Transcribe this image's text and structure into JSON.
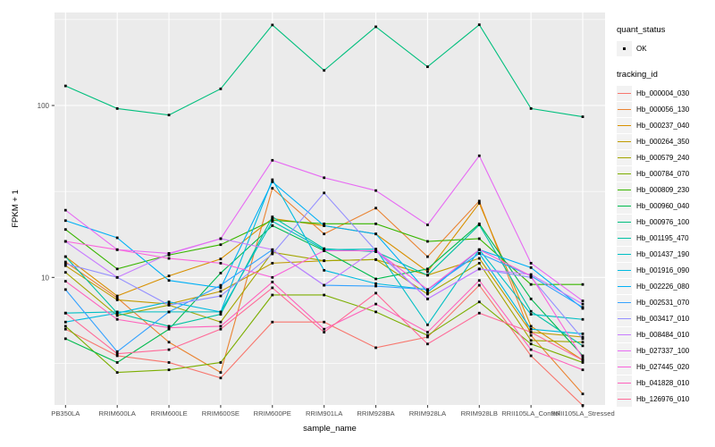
{
  "figure": {
    "background": "#ffffff",
    "panel_background": "#EBEBEB",
    "grid_color": "#FFFFFF",
    "axis_text_color": "#4D4D4D",
    "axis_title_color": "#000000",
    "marker_color": "#000000"
  },
  "legend": {
    "quant_status_title": "quant_status",
    "quant_status_items": [
      {
        "label": "OK",
        "marker": "black-point"
      }
    ],
    "tracking_id_title": "tracking_id"
  },
  "chart_data": {
    "type": "line",
    "title": "",
    "xlabel": "sample_name",
    "ylabel": "FPKM + 1",
    "y_scale": "log10",
    "y_major_ticks": [
      10,
      100
    ],
    "y_minor_gridlines": [
      3.1623,
      31.623,
      316.23
    ],
    "ylim": [
      1.75,
      350
    ],
    "grid": true,
    "legend_position": "right",
    "point_marker": "small black square (quant_status = OK)",
    "x_categories": [
      "PB350LA",
      "RRIM600LA",
      "RRIM600LE",
      "RRIM600SE",
      "RRIM600PE",
      "RRIM901LA",
      "RRIM928BA",
      "RRIM928LA",
      "RRIM928LB",
      "RRII105LA_Control",
      "RRII105LA_Stressed"
    ],
    "series": [
      {
        "name": "Hb_000004_030",
        "color": "#F8766D",
        "values": [
          5.0,
          3.5,
          3.2,
          2.6,
          5.5,
          5.5,
          3.9,
          4.5,
          9.0,
          3.5,
          1.8
        ]
      },
      {
        "name": "Hb_000056_130",
        "color": "#EA8331",
        "values": [
          12.3,
          7.6,
          4.2,
          2.8,
          33,
          17.9,
          25.3,
          13.2,
          27.8,
          4.6,
          2.1
        ]
      },
      {
        "name": "Hb_000237_040",
        "color": "#D89000",
        "values": [
          13.2,
          7.8,
          10.2,
          12.8,
          22,
          20,
          17.9,
          10.8,
          27,
          5.2,
          3.3
        ]
      },
      {
        "name": "Hb_000264_350",
        "color": "#C09B00",
        "values": [
          11.7,
          7.4,
          7.0,
          8.3,
          12.1,
          12.5,
          12.7,
          10.3,
          12.9,
          4.8,
          4.5
        ]
      },
      {
        "name": "Hb_000579_240",
        "color": "#A3A500",
        "values": [
          10.7,
          6.0,
          6.9,
          5.5,
          14,
          12.5,
          12.7,
          8.0,
          12.1,
          4.3,
          4.2
        ]
      },
      {
        "name": "Hb_000784_070",
        "color": "#7CAE00",
        "values": [
          5.2,
          2.8,
          2.9,
          3.2,
          7.9,
          7.9,
          6.3,
          4.6,
          7.2,
          4.1,
          3.2
        ]
      },
      {
        "name": "Hb_000809_230",
        "color": "#39B600",
        "values": [
          19,
          11.2,
          13.5,
          15.5,
          21.5,
          20.5,
          20.5,
          16.2,
          16.8,
          9.1,
          9.1
        ]
      },
      {
        "name": "Hb_000960_040",
        "color": "#00BB4E",
        "values": [
          4.4,
          3.2,
          5.0,
          10.6,
          20,
          14.3,
          9.8,
          11.2,
          20.5,
          7.5,
          3.5
        ]
      },
      {
        "name": "Hb_000976_100",
        "color": "#00BF7D",
        "values": [
          130,
          96,
          88,
          125,
          294,
          160,
          287,
          168,
          295,
          96,
          86
        ]
      },
      {
        "name": "Hb_001195_470",
        "color": "#00C1A3",
        "values": [
          13.2,
          6.2,
          5.2,
          6.1,
          22.5,
          14.7,
          14.1,
          10.3,
          20.2,
          6.35,
          4.0
        ]
      },
      {
        "name": "Hb_001437_190",
        "color": "#00BFC4",
        "values": [
          6.2,
          6.3,
          6.3,
          6.3,
          21.2,
          14.5,
          14.6,
          5.3,
          14.5,
          6.1,
          5.7
        ]
      },
      {
        "name": "Hb_001916_090",
        "color": "#00BAE0",
        "values": [
          5.5,
          6.2,
          7.2,
          6.3,
          37,
          11.0,
          9.2,
          8.5,
          13.8,
          5.0,
          4.7
        ]
      },
      {
        "name": "Hb_002226_080",
        "color": "#00B0F6",
        "values": [
          21.4,
          17,
          9.6,
          8.7,
          36,
          20,
          17.9,
          8.2,
          14.5,
          11.4,
          6.6
        ]
      },
      {
        "name": "Hb_002531_070",
        "color": "#35A2FF",
        "values": [
          8.5,
          3.7,
          6.3,
          9.0,
          14.5,
          9.0,
          8.9,
          8.5,
          13.8,
          10.2,
          6.7
        ]
      },
      {
        "name": "Hb_003417_010",
        "color": "#9590FF",
        "values": [
          12.0,
          10.0,
          6.9,
          7.8,
          13.7,
          31,
          14.3,
          7.5,
          11.2,
          10.0,
          4.4
        ]
      },
      {
        "name": "Hb_008484_010",
        "color": "#C77CFF",
        "values": [
          16.2,
          10.0,
          13.7,
          16.8,
          14.5,
          9.0,
          14.6,
          7.5,
          11.2,
          10.4,
          7.0
        ]
      },
      {
        "name": "Hb_027337_100",
        "color": "#E76BF3",
        "values": [
          24.6,
          14.5,
          13.8,
          16.8,
          48,
          38,
          32,
          20.2,
          51,
          12.1,
          7.3
        ]
      },
      {
        "name": "Hb_027445_020",
        "color": "#FA62DB",
        "values": [
          16.2,
          14.5,
          12.9,
          12.1,
          10.0,
          14.3,
          14.3,
          8.5,
          14.5,
          10.2,
          3.4
        ]
      },
      {
        "name": "Hb_041828_010",
        "color": "#FF62BC",
        "values": [
          9.5,
          5.7,
          5.1,
          5.2,
          9.4,
          5.0,
          7.0,
          4.8,
          9.6,
          3.8,
          2.9
        ]
      },
      {
        "name": "Hb_126976_010",
        "color": "#FF6A98",
        "values": [
          6.2,
          3.6,
          3.8,
          5.0,
          8.7,
          4.8,
          8.1,
          4.1,
          6.2,
          4.8,
          3.3
        ]
      }
    ]
  }
}
